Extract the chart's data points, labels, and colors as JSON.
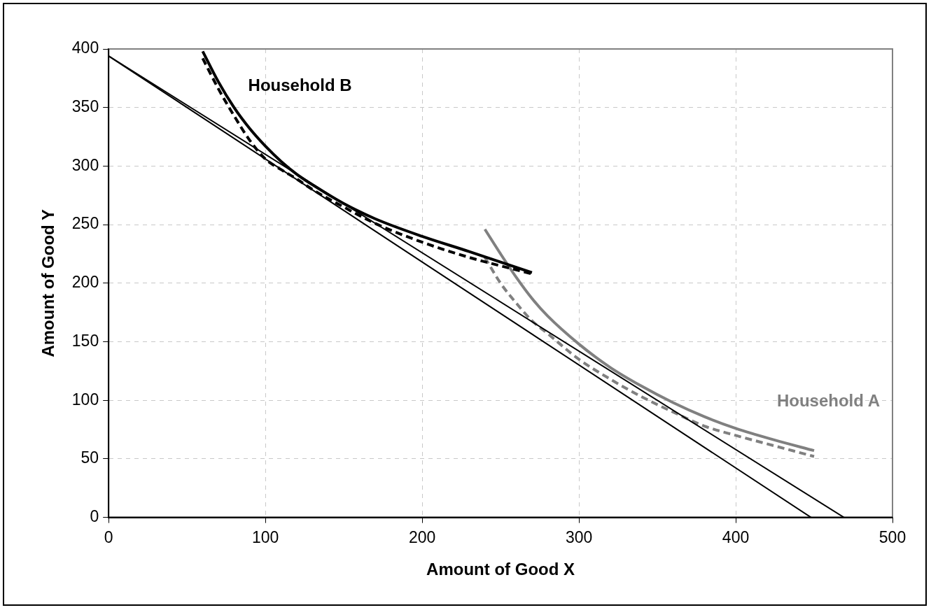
{
  "chart_data": {
    "type": "line",
    "xlabel": "Amount of Good X",
    "ylabel": "Amount of Good Y",
    "xlim": [
      0,
      500
    ],
    "xticks": [
      0,
      100,
      200,
      300,
      400,
      500
    ],
    "ylim": [
      0,
      400
    ],
    "yticks": [
      0,
      50,
      100,
      150,
      200,
      250,
      300,
      350,
      400
    ],
    "grid": true,
    "legend": false,
    "marker": "none",
    "series": [
      {
        "color": "#000000",
        "line_style": "solid",
        "x": [
          0,
          448
        ],
        "values": [
          394,
          0
        ]
      },
      {
        "color": "#000000",
        "line_style": "solid",
        "x": [
          0,
          469
        ],
        "values": [
          394,
          0
        ]
      },
      {
        "name": "Household B",
        "color": "#000000",
        "line_style": "solid",
        "x": [
          60,
          70,
          80,
          90,
          100,
          110,
          120,
          130,
          150,
          170,
          200,
          230,
          250,
          270
        ],
        "values": [
          398,
          372,
          350,
          332,
          317,
          304,
          293,
          284,
          268,
          255,
          240,
          227,
          218,
          209
        ]
      },
      {
        "color": "#000000",
        "line_style": "dashed",
        "x": [
          60,
          70,
          80,
          90,
          100,
          110,
          120,
          130,
          150,
          170,
          200,
          230,
          270
        ],
        "values": [
          392,
          366,
          343,
          322,
          306,
          297,
          289,
          280,
          265,
          251,
          235,
          222,
          208
        ]
      },
      {
        "name": "Household A",
        "color": "#808080",
        "line_style": "solid",
        "x": [
          240,
          250,
          260,
          270,
          280,
          300,
          320,
          340,
          360,
          380,
          400,
          425,
          450
        ],
        "values": [
          246,
          225,
          205,
          187,
          172,
          148,
          128,
          112,
          98,
          86,
          76,
          66,
          57
        ]
      },
      {
        "color": "#808080",
        "line_style": "dashed",
        "x": [
          240,
          250,
          260,
          270,
          280,
          300,
          320,
          340,
          360,
          380,
          400,
          425,
          450
        ],
        "values": [
          222,
          200,
          183,
          168,
          157,
          135,
          118,
          103,
          90,
          78,
          70,
          61,
          52
        ]
      }
    ]
  }
}
